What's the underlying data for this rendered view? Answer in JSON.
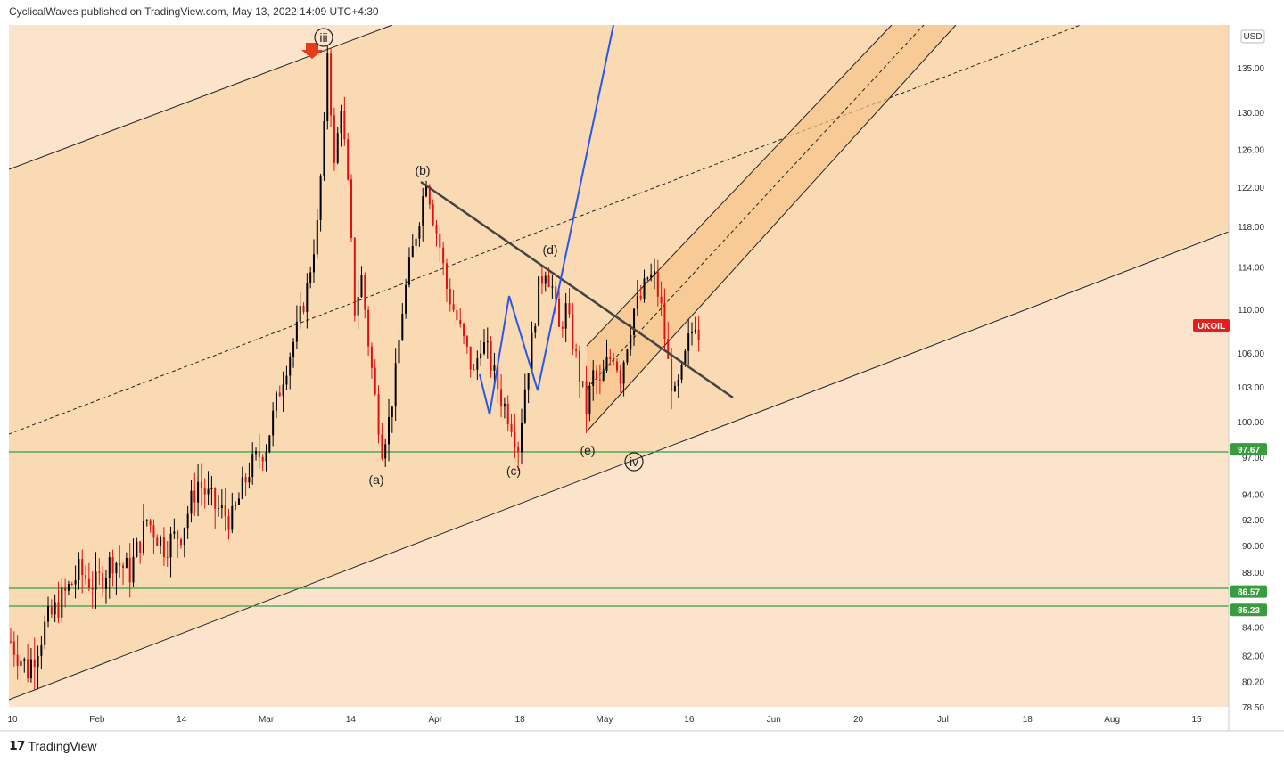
{
  "header": {
    "publish_line": "CyclicalWaves published on TradingView.com, May 13, 2022 14:09 UTC+4:30"
  },
  "footer": {
    "brand": "TradingView",
    "logo_icon": "tradingview-logo-icon"
  },
  "colors": {
    "background_band": "#fbe3c7",
    "upper_band": "#f9d9b4",
    "lower_band": "#fbe4cb",
    "channel_fill": "#f7c48a",
    "up_candle": "#000000",
    "down_candle": "#e01010",
    "support_line": "#2ea043",
    "impulse_line": "#2957e8",
    "trend_line": "#444444",
    "price_tag_green": "#3a9c3e",
    "price_tag_red": "#e0201c"
  },
  "chart_data": {
    "type": "candlestick",
    "symbol": "UKOIL",
    "currency": "USD",
    "price_scale": "log",
    "ylim": [
      78.5,
      140
    ],
    "x_tick_labels": [
      "10",
      "Feb",
      "14",
      "Mar",
      "14",
      "Apr",
      "18",
      "May",
      "16",
      "Jun",
      "20",
      "Jul",
      "18",
      "Aug",
      "15"
    ],
    "y_tick_labels": [
      "135.00",
      "130.00",
      "126.00",
      "122.00",
      "118.00",
      "114.00",
      "110.00",
      "106.00",
      "103.00",
      "100.00",
      "97.00",
      "94.00",
      "92.00",
      "90.00",
      "88.00",
      "84.00",
      "82.00",
      "80.20",
      "78.50"
    ],
    "y_ticks": [
      135,
      130,
      126,
      122,
      118,
      114,
      110,
      106,
      103,
      100,
      97,
      94,
      92,
      90,
      88,
      84,
      82,
      80.2,
      78.5
    ],
    "price_tags": [
      {
        "label": "UKOIL",
        "value": 108.5,
        "color": "red"
      },
      {
        "label": "97.67",
        "value": 97.67,
        "color": "green"
      },
      {
        "label": "86.57",
        "value": 86.57,
        "color": "green"
      },
      {
        "label": "85.23",
        "value": 85.23,
        "color": "green"
      }
    ],
    "horizontal_levels": [
      97.67,
      86.57,
      85.23
    ],
    "wave_labels": [
      {
        "text": "iii",
        "circled": true
      },
      {
        "text": "(a)"
      },
      {
        "text": "(b)"
      },
      {
        "text": "(c)"
      },
      {
        "text": "(d)"
      },
      {
        "text": "(e)"
      },
      {
        "text": "iv",
        "circled": true
      }
    ],
    "price_path": [
      [
        0,
        83
      ],
      [
        5,
        81
      ],
      [
        10,
        84
      ],
      [
        15,
        86
      ],
      [
        20,
        88
      ],
      [
        25,
        87
      ],
      [
        30,
        89
      ],
      [
        35,
        88
      ],
      [
        40,
        92
      ],
      [
        45,
        90
      ],
      [
        50,
        91
      ],
      [
        55,
        95
      ],
      [
        60,
        93
      ],
      [
        65,
        92
      ],
      [
        70,
        96
      ],
      [
        75,
        98
      ],
      [
        80,
        104
      ],
      [
        84,
        108
      ],
      [
        87,
        112
      ],
      [
        90,
        118
      ],
      [
        92,
        128
      ],
      [
        93,
        137
      ],
      [
        95,
        124
      ],
      [
        97,
        131
      ],
      [
        99,
        122
      ],
      [
        101,
        110
      ],
      [
        103,
        113
      ],
      [
        105,
        107
      ],
      [
        107,
        102
      ],
      [
        109,
        98
      ],
      [
        111,
        100
      ],
      [
        113,
        104
      ],
      [
        115,
        110
      ],
      [
        117,
        114
      ],
      [
        120,
        119
      ],
      [
        122,
        123
      ],
      [
        124,
        119
      ],
      [
        126,
        116
      ],
      [
        128,
        112
      ],
      [
        130,
        110
      ],
      [
        133,
        107
      ],
      [
        136,
        104
      ],
      [
        138,
        107
      ],
      [
        140,
        106
      ],
      [
        142,
        104
      ],
      [
        144,
        102
      ],
      [
        147,
        100
      ],
      [
        149,
        98
      ],
      [
        151,
        103
      ],
      [
        153,
        107
      ],
      [
        155,
        112
      ],
      [
        157,
        114
      ],
      [
        159,
        112
      ],
      [
        161,
        108
      ],
      [
        163,
        110
      ],
      [
        165,
        107
      ],
      [
        167,
        104
      ],
      [
        169,
        101
      ],
      [
        171,
        104
      ],
      [
        173,
        103
      ],
      [
        175,
        105
      ],
      [
        177,
        106
      ],
      [
        179,
        104
      ],
      [
        181,
        107
      ],
      [
        183,
        110
      ],
      [
        185,
        111
      ],
      [
        187,
        113
      ],
      [
        189,
        113
      ],
      [
        191,
        110
      ],
      [
        193,
        105
      ],
      [
        195,
        102
      ],
      [
        197,
        104
      ],
      [
        199,
        107
      ],
      [
        201,
        109
      ],
      [
        202,
        108
      ]
    ]
  }
}
